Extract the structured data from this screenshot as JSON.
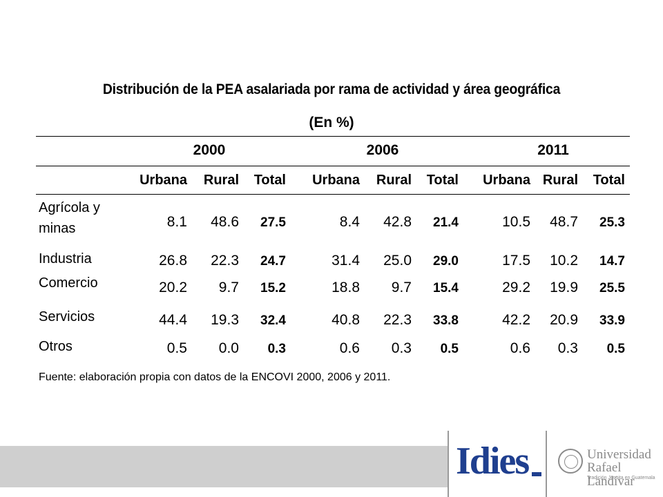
{
  "title": "Distribución de la PEA asalariada por rama de actividad y área geográfica",
  "subtitle": "(En %)",
  "years": [
    "2000",
    "2006",
    "2011"
  ],
  "column_headers": [
    "Urbana",
    "Rural",
    "Total",
    "Urbana",
    "Rural",
    "Total",
    "Urbana",
    "Rural",
    "Total"
  ],
  "rows": [
    {
      "label_line1": "Agrícola y",
      "label_line2": "minas",
      "values": [
        "8.1",
        "48.6",
        "27.5",
        "8.4",
        "42.8",
        "21.4",
        "10.5",
        "48.7",
        "25.3"
      ]
    },
    {
      "label_line1": "Industria",
      "values": [
        "26.8",
        "22.3",
        "24.7",
        "31.4",
        "25.0",
        "29.0",
        "17.5",
        "10.2",
        "14.7"
      ]
    },
    {
      "label_line1": "Comercio",
      "values": [
        "20.2",
        "9.7",
        "15.2",
        "18.8",
        "9.7",
        "15.4",
        "29.2",
        "19.9",
        "25.5"
      ]
    },
    {
      "label_line1": "Servicios",
      "values": [
        "44.4",
        "19.3",
        "32.4",
        "40.8",
        "22.3",
        "33.8",
        "42.2",
        "20.9",
        "33.9"
      ]
    },
    {
      "label_line1": "Otros",
      "values": [
        "0.5",
        "0.0",
        "0.3",
        "0.6",
        "0.3",
        "0.5",
        "0.6",
        "0.3",
        "0.5"
      ]
    }
  ],
  "source": "Fuente: elaboración propia con datos de la ENCOVI 2000, 2006 y 2011.",
  "logos": {
    "idies": "Idies",
    "university_line1": "Universidad",
    "university_line2": "Rafael Landívar",
    "university_small": "Tradición Jesuita en Guatemala"
  }
}
